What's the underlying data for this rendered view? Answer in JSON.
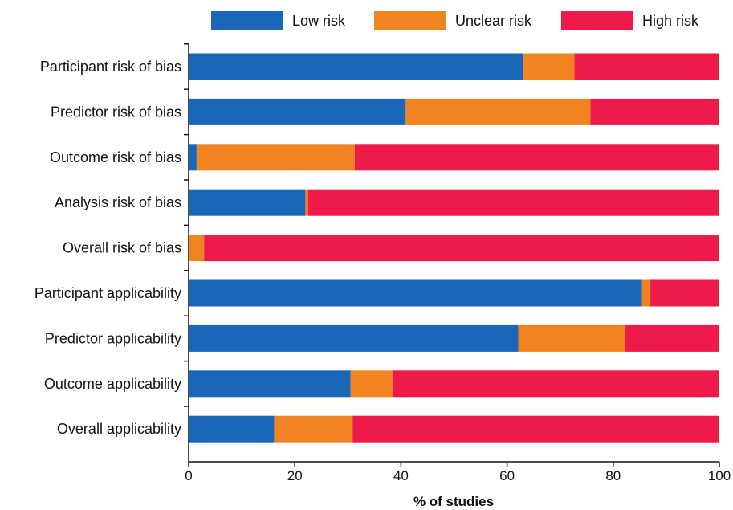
{
  "chart_data": {
    "type": "bar",
    "stacked": true,
    "orientation": "horizontal",
    "categories": [
      "Participant risk of bias",
      "Predictor risk of bias",
      "Outcome risk of bias",
      "Analysis risk of bias",
      "Overall risk of bias",
      "Participant applicability",
      "Predictor applicability",
      "Outcome applicability",
      "Overall applicability"
    ],
    "series": [
      {
        "name": "Low risk",
        "color": "#1a66b8",
        "values": [
          63.1,
          40.9,
          1.5,
          22.0,
          0.0,
          85.4,
          62.1,
          30.5,
          16.1
        ]
      },
      {
        "name": "Unclear risk",
        "color": "#f28321",
        "values": [
          9.6,
          34.8,
          29.8,
          0.5,
          2.9,
          1.6,
          20.1,
          7.9,
          14.8
        ]
      },
      {
        "name": "High risk",
        "color": "#ee1a4a",
        "values": [
          27.3,
          24.3,
          68.7,
          77.5,
          97.1,
          13.0,
          17.8,
          61.6,
          69.1
        ]
      }
    ],
    "xlabel": "% of studies",
    "ylabel": "",
    "xlim": [
      0,
      100
    ],
    "xticks": [
      "0",
      "20",
      "40",
      "60",
      "80",
      "100"
    ],
    "legend_position": "top-right",
    "grid": false
  }
}
